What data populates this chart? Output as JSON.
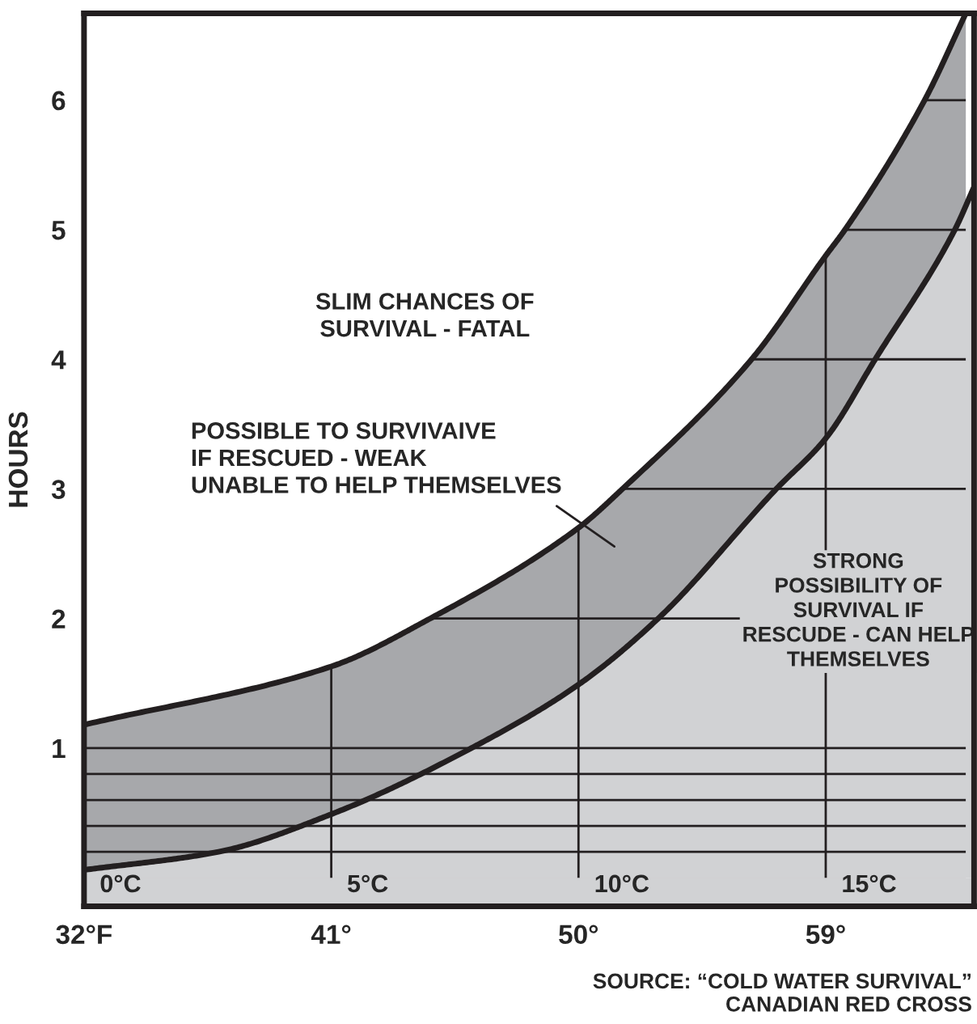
{
  "chart_data": {
    "type": "area",
    "ylabel": "HOURS",
    "xlim": [
      32,
      64.4
    ],
    "ylim": [
      -0.22,
      6.67
    ],
    "xticks": [
      {
        "value": 32,
        "label": "32°F"
      },
      {
        "value": 41,
        "label": "41°"
      },
      {
        "value": 50,
        "label": "50°"
      },
      {
        "value": 59,
        "label": "59°"
      }
    ],
    "yticks": [
      1,
      2,
      3,
      4,
      5,
      6
    ],
    "grid": true,
    "series": [
      {
        "color": "#a7a8ab",
        "x": [
          32,
          41,
          44.6,
          50,
          51.6,
          56.3,
          59,
          59.7,
          62.6,
          64.1
        ],
        "values": [
          1.18,
          1.63,
          2,
          2.7,
          3,
          4,
          4.8,
          5,
          6,
          6.67
        ]
      },
      {
        "color": "#d1d2d4",
        "x": [
          32,
          36.9,
          41,
          46.1,
          50,
          52.9,
          57.2,
          59,
          60.8,
          63.7,
          64.4
        ],
        "values": [
          0.06,
          0.2,
          0.49,
          1.0,
          1.49,
          2,
          3,
          3.39,
          4,
          5,
          5.33
        ]
      }
    ],
    "ref_lines": [
      {
        "axis": "y",
        "value": 0.2
      },
      {
        "axis": "y",
        "value": 0.4
      },
      {
        "axis": "y",
        "value": 0.6
      },
      {
        "axis": "y",
        "value": 0.8
      }
    ],
    "annotations": [
      "SLIM CHANCES OF\nSURVIVAL - FATAL",
      "POSSIBLE TO SURVIVAIVE\nIF RESCUED - WEAK\nUNABLE TO HELP THEMSELVES",
      "STRONG\nPOSSIBILITY OF\nSURVIVAL IF\nRESCUDE - CAN HELP\nTHEMSELVES",
      "0°C",
      "5°C",
      "10°C",
      "15°C",
      "SOURCE: “COLD WATER SURVIVAL”\nCANADIAN RED CROSS"
    ]
  }
}
